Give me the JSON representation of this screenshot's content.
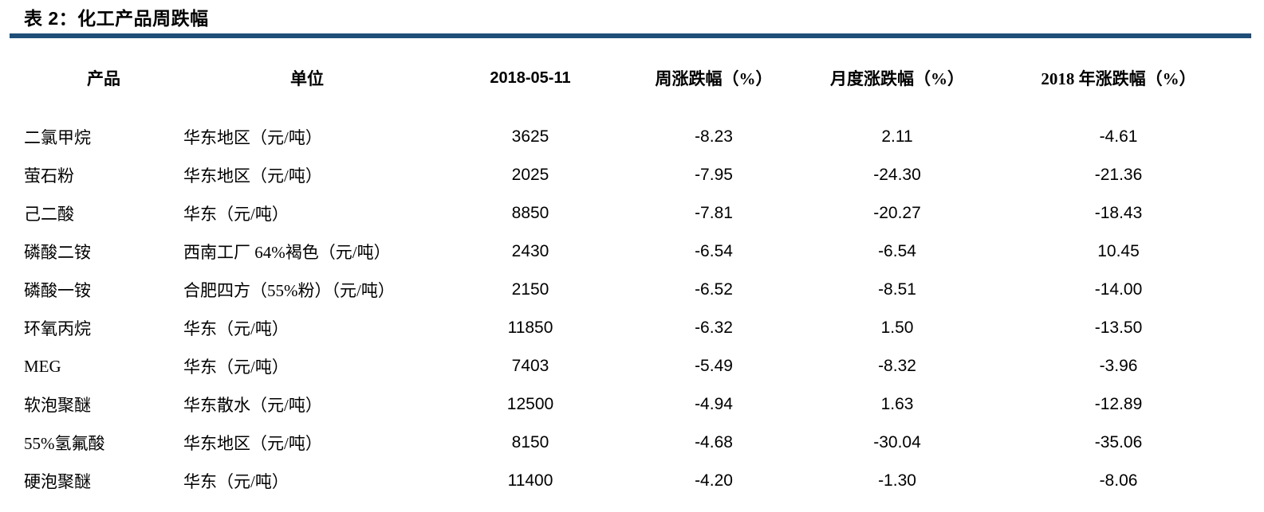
{
  "page": {
    "title": "表 2：化工产品周跌幅",
    "accent_color": "#1F4E79",
    "background_color": "#FFFFFF",
    "text_color": "#000000"
  },
  "table": {
    "columns": [
      "产品",
      "单位",
      "2018-05-11",
      "周涨跌幅（%）",
      "月度涨跌幅（%）",
      "2018 年涨跌幅（%）"
    ],
    "rows": [
      [
        "二氯甲烷",
        "华东地区（元/吨）",
        "3625",
        "-8.23",
        "2.11",
        "-4.61"
      ],
      [
        "萤石粉",
        "华东地区（元/吨）",
        "2025",
        "-7.95",
        "-24.30",
        "-21.36"
      ],
      [
        "己二酸",
        "华东（元/吨）",
        "8850",
        "-7.81",
        "-20.27",
        "-18.43"
      ],
      [
        "磷酸二铵",
        "西南工厂 64%褐色（元/吨）",
        "2430",
        "-6.54",
        "-6.54",
        "10.45"
      ],
      [
        "磷酸一铵",
        "合肥四方（55%粉）（元/吨）",
        "2150",
        "-6.52",
        "-8.51",
        "-14.00"
      ],
      [
        "环氧丙烷",
        "华东（元/吨）",
        "11850",
        "-6.32",
        "1.50",
        "-13.50"
      ],
      [
        "MEG",
        "华东（元/吨）",
        "7403",
        "-5.49",
        "-8.32",
        "-3.96"
      ],
      [
        "软泡聚醚",
        "华东散水（元/吨）",
        "12500",
        "-4.94",
        "1.63",
        "-12.89"
      ],
      [
        "55%氢氟酸",
        "华东地区（元/吨）",
        "8150",
        "-4.68",
        "-30.04",
        "-35.06"
      ],
      [
        "硬泡聚醚",
        "华东（元/吨）",
        "11400",
        "-4.20",
        "-1.30",
        "-8.06"
      ]
    ]
  }
}
